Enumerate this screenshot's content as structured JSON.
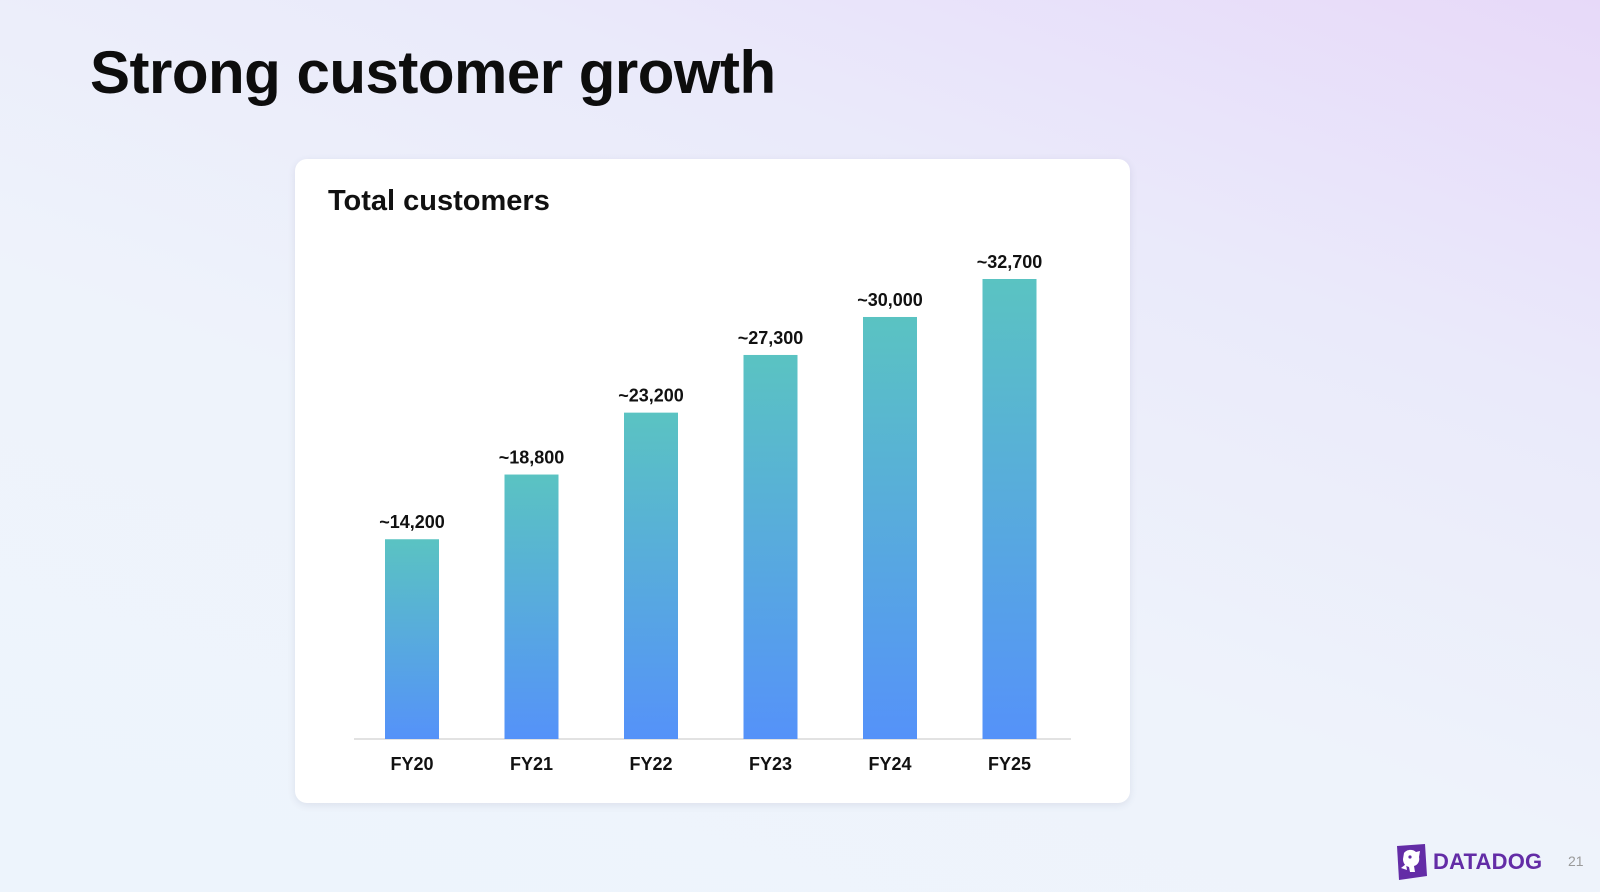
{
  "slide": {
    "title": "Strong customer growth",
    "page_number": "21",
    "logo_text": "DATADOG",
    "logo_icon": "datadog-dog-icon"
  },
  "colors": {
    "bar_top": "#5ac3c2",
    "bar_bottom": "#5592f9",
    "logo": "#632ca6",
    "axis": "#d8d8d8"
  },
  "chart_data": {
    "type": "bar",
    "title": "Total customers",
    "categories": [
      "FY20",
      "FY21",
      "FY22",
      "FY23",
      "FY24",
      "FY25"
    ],
    "values": [
      14200,
      18800,
      23200,
      27300,
      30000,
      32700
    ],
    "data_labels": [
      "~14,200",
      "~18,800",
      "~23,200",
      "~27,300",
      "~30,000",
      "~32,700"
    ],
    "xlabel": "",
    "ylabel": "",
    "ylim": [
      0,
      32700
    ],
    "grid": false,
    "legend": "none"
  }
}
